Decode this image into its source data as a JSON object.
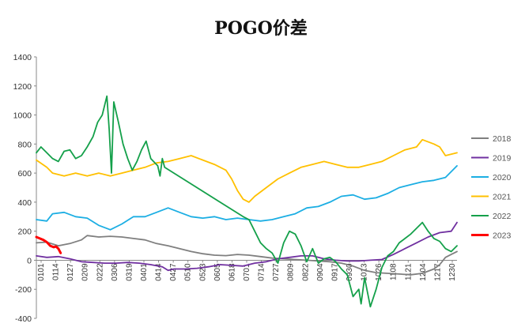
{
  "chart_data": {
    "type": "line",
    "title": "POGO价差",
    "xlabel": "",
    "ylabel": "",
    "ylim": [
      -400,
      1400
    ],
    "yticks": [
      -400,
      -200,
      0,
      200,
      400,
      600,
      800,
      1000,
      1200,
      1400
    ],
    "xlim": [
      1,
      365
    ],
    "xtick_labels": [
      "0101",
      "0114",
      "0127",
      "0209",
      "0222",
      "0306",
      "0319",
      "0401",
      "0414",
      "0427",
      "0510",
      "0523",
      "0605",
      "0618",
      "0701",
      "0714",
      "0727",
      "0809",
      "0822",
      "0904",
      "0917",
      "0930",
      "1013",
      "1026",
      "1108",
      "1121",
      "1204",
      "1217",
      "1230"
    ],
    "legend_position": "right",
    "grid": false,
    "series": [
      {
        "name": "2018",
        "color": "#7f7f7f",
        "points": [
          [
            1,
            120
          ],
          [
            10,
            125
          ],
          [
            20,
            100
          ],
          [
            30,
            115
          ],
          [
            40,
            140
          ],
          [
            45,
            170
          ],
          [
            55,
            160
          ],
          [
            65,
            165
          ],
          [
            75,
            160
          ],
          [
            85,
            150
          ],
          [
            95,
            140
          ],
          [
            105,
            115
          ],
          [
            115,
            100
          ],
          [
            125,
            80
          ],
          [
            135,
            60
          ],
          [
            145,
            45
          ],
          [
            155,
            35
          ],
          [
            165,
            32
          ],
          [
            175,
            40
          ],
          [
            185,
            35
          ],
          [
            195,
            25
          ],
          [
            205,
            15
          ],
          [
            215,
            10
          ],
          [
            225,
            5
          ],
          [
            235,
            0
          ],
          [
            245,
            -5
          ],
          [
            255,
            -10
          ],
          [
            265,
            -20
          ],
          [
            275,
            -40
          ],
          [
            285,
            -70
          ],
          [
            295,
            -85
          ],
          [
            305,
            -90
          ],
          [
            315,
            -95
          ],
          [
            325,
            -100
          ],
          [
            335,
            -90
          ],
          [
            345,
            -60
          ],
          [
            350,
            -30
          ],
          [
            355,
            20
          ],
          [
            360,
            40
          ],
          [
            365,
            60
          ]
        ]
      },
      {
        "name": "2019",
        "color": "#7030a0",
        "points": [
          [
            1,
            30
          ],
          [
            10,
            20
          ],
          [
            20,
            25
          ],
          [
            30,
            10
          ],
          [
            40,
            -10
          ],
          [
            50,
            -15
          ],
          [
            60,
            -20
          ],
          [
            70,
            -20
          ],
          [
            80,
            -15
          ],
          [
            90,
            -20
          ],
          [
            100,
            -30
          ],
          [
            110,
            -45
          ],
          [
            115,
            -70
          ],
          [
            120,
            -60
          ],
          [
            130,
            -60
          ],
          [
            140,
            -55
          ],
          [
            150,
            -45
          ],
          [
            160,
            -30
          ],
          [
            170,
            -35
          ],
          [
            180,
            -40
          ],
          [
            190,
            -20
          ],
          [
            200,
            -10
          ],
          [
            210,
            10
          ],
          [
            220,
            20
          ],
          [
            230,
            30
          ],
          [
            240,
            30
          ],
          [
            250,
            10
          ],
          [
            260,
            0
          ],
          [
            270,
            -5
          ],
          [
            280,
            -5
          ],
          [
            290,
            0
          ],
          [
            300,
            5
          ],
          [
            310,
            40
          ],
          [
            320,
            80
          ],
          [
            330,
            120
          ],
          [
            340,
            160
          ],
          [
            350,
            190
          ],
          [
            360,
            200
          ],
          [
            365,
            260
          ]
        ]
      },
      {
        "name": "2020",
        "color": "#1caee3",
        "points": [
          [
            1,
            280
          ],
          [
            10,
            270
          ],
          [
            15,
            320
          ],
          [
            25,
            330
          ],
          [
            35,
            300
          ],
          [
            45,
            290
          ],
          [
            55,
            240
          ],
          [
            65,
            210
          ],
          [
            75,
            250
          ],
          [
            85,
            300
          ],
          [
            95,
            300
          ],
          [
            105,
            330
          ],
          [
            115,
            360
          ],
          [
            125,
            330
          ],
          [
            135,
            300
          ],
          [
            145,
            290
          ],
          [
            155,
            300
          ],
          [
            165,
            280
          ],
          [
            175,
            290
          ],
          [
            185,
            280
          ],
          [
            195,
            270
          ],
          [
            205,
            280
          ],
          [
            215,
            300
          ],
          [
            225,
            320
          ],
          [
            235,
            360
          ],
          [
            245,
            370
          ],
          [
            255,
            400
          ],
          [
            265,
            440
          ],
          [
            275,
            450
          ],
          [
            285,
            420
          ],
          [
            295,
            430
          ],
          [
            305,
            460
          ],
          [
            315,
            500
          ],
          [
            325,
            520
          ],
          [
            335,
            540
          ],
          [
            345,
            550
          ],
          [
            355,
            570
          ],
          [
            360,
            610
          ],
          [
            365,
            650
          ]
        ]
      },
      {
        "name": "2021",
        "color": "#ffc000",
        "points": [
          [
            1,
            690
          ],
          [
            10,
            640
          ],
          [
            15,
            600
          ],
          [
            25,
            580
          ],
          [
            35,
            600
          ],
          [
            45,
            580
          ],
          [
            55,
            600
          ],
          [
            65,
            580
          ],
          [
            75,
            600
          ],
          [
            85,
            620
          ],
          [
            95,
            640
          ],
          [
            105,
            670
          ],
          [
            115,
            680
          ],
          [
            125,
            700
          ],
          [
            135,
            720
          ],
          [
            145,
            690
          ],
          [
            155,
            660
          ],
          [
            165,
            620
          ],
          [
            170,
            560
          ],
          [
            175,
            480
          ],
          [
            180,
            420
          ],
          [
            185,
            400
          ],
          [
            190,
            440
          ],
          [
            200,
            500
          ],
          [
            210,
            560
          ],
          [
            220,
            600
          ],
          [
            230,
            640
          ],
          [
            240,
            660
          ],
          [
            250,
            680
          ],
          [
            260,
            660
          ],
          [
            270,
            640
          ],
          [
            280,
            640
          ],
          [
            290,
            660
          ],
          [
            300,
            680
          ],
          [
            310,
            720
          ],
          [
            320,
            760
          ],
          [
            330,
            780
          ],
          [
            335,
            830
          ],
          [
            345,
            800
          ],
          [
            350,
            780
          ],
          [
            355,
            720
          ],
          [
            365,
            740
          ]
        ]
      },
      {
        "name": "2022",
        "color": "#14a04a",
        "points": [
          [
            1,
            740
          ],
          [
            5,
            780
          ],
          [
            10,
            740
          ],
          [
            15,
            700
          ],
          [
            20,
            680
          ],
          [
            25,
            750
          ],
          [
            30,
            760
          ],
          [
            35,
            700
          ],
          [
            40,
            720
          ],
          [
            45,
            780
          ],
          [
            50,
            850
          ],
          [
            54,
            950
          ],
          [
            58,
            1000
          ],
          [
            62,
            1130
          ],
          [
            64,
            900
          ],
          [
            66,
            600
          ],
          [
            68,
            1090
          ],
          [
            72,
            950
          ],
          [
            76,
            800
          ],
          [
            80,
            700
          ],
          [
            84,
            620
          ],
          [
            88,
            680
          ],
          [
            92,
            760
          ],
          [
            96,
            820
          ],
          [
            100,
            700
          ],
          [
            106,
            650
          ],
          [
            108,
            580
          ],
          [
            110,
            700
          ],
          [
            112,
            640
          ],
          [
            180,
            300
          ],
          [
            185,
            280
          ],
          [
            190,
            200
          ],
          [
            195,
            120
          ],
          [
            200,
            80
          ],
          [
            205,
            50
          ],
          [
            210,
            -20
          ],
          [
            215,
            120
          ],
          [
            220,
            200
          ],
          [
            225,
            180
          ],
          [
            230,
            100
          ],
          [
            235,
            -10
          ],
          [
            240,
            80
          ],
          [
            245,
            -20
          ],
          [
            250,
            10
          ],
          [
            255,
            20
          ],
          [
            260,
            -10
          ],
          [
            265,
            -60
          ],
          [
            270,
            -100
          ],
          [
            275,
            -250
          ],
          [
            280,
            -200
          ],
          [
            282,
            -300
          ],
          [
            285,
            -120
          ],
          [
            290,
            -320
          ],
          [
            295,
            -200
          ],
          [
            300,
            -50
          ],
          [
            305,
            30
          ],
          [
            310,
            60
          ],
          [
            315,
            120
          ],
          [
            320,
            150
          ],
          [
            325,
            180
          ],
          [
            330,
            220
          ],
          [
            335,
            260
          ],
          [
            340,
            200
          ],
          [
            345,
            150
          ],
          [
            350,
            130
          ],
          [
            355,
            80
          ],
          [
            360,
            60
          ],
          [
            365,
            100
          ]
        ]
      },
      {
        "name": "2023",
        "color": "#ff0000",
        "points": [
          [
            1,
            160
          ],
          [
            4,
            150
          ],
          [
            7,
            140
          ],
          [
            10,
            125
          ],
          [
            13,
            100
          ],
          [
            16,
            90
          ],
          [
            18,
            95
          ],
          [
            20,
            80
          ],
          [
            22,
            50
          ]
        ]
      }
    ]
  }
}
